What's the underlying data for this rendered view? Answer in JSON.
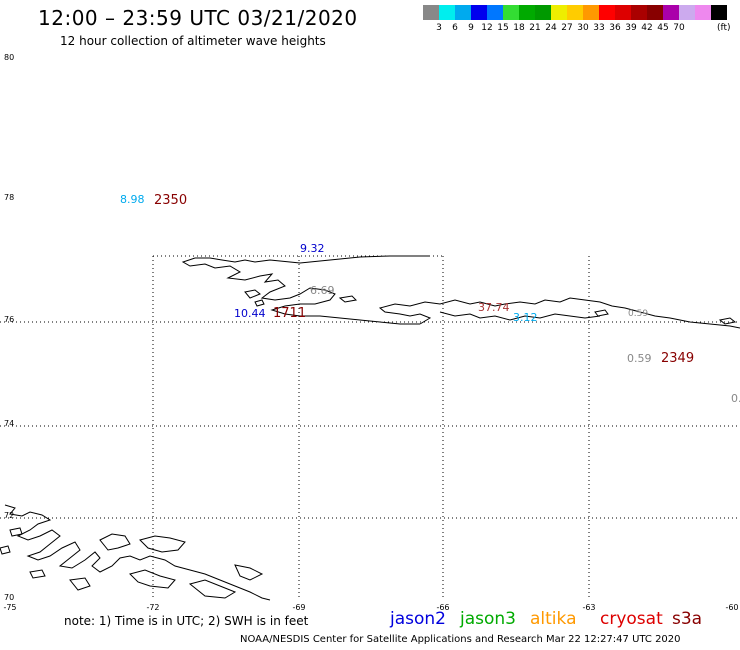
{
  "title": "12:00 – 23:59 UTC 03/21/2020",
  "subtitle": "12 hour collection of altimeter wave heights",
  "legend": {
    "colors": [
      "#888888",
      "#00eeee",
      "#00aaee",
      "#0000ee",
      "#0077ff",
      "#33dd33",
      "#00aa00",
      "#009900",
      "#eeee00",
      "#ffcc00",
      "#ff9900",
      "#ff0000",
      "#dd0000",
      "#aa0000",
      "#880000",
      "#aa00aa",
      "#ccaaee",
      "#ee88ee",
      "#000000"
    ],
    "labels": [
      "3",
      "6",
      "9",
      "12",
      "15",
      "18",
      "21",
      "24",
      "27",
      "30",
      "33",
      "36",
      "39",
      "42",
      "45",
      "70"
    ],
    "unit": "(ft)"
  },
  "map": {
    "lat_labels": [
      "80",
      "78",
      "76",
      "74",
      "72",
      "70"
    ],
    "lon_labels": [
      "-75",
      "-72",
      "-69",
      "-66",
      "-63",
      "-60"
    ]
  },
  "observations": [
    {
      "swh": "8.98",
      "color": "#00aaee"
    },
    {
      "swh": "2350",
      "color": "#880000"
    },
    {
      "swh": "9.32",
      "color": "#0000cc"
    },
    {
      "swh": "10.44",
      "color": "#0000cc"
    },
    {
      "swh": "1711",
      "color": "#880000"
    },
    {
      "swh": "0.59",
      "color": "#888888"
    },
    {
      "swh": "2349",
      "color": "#880000"
    },
    {
      "swh": "37.74",
      "color": "#aa3333"
    },
    {
      "swh": "3.12",
      "color": "#00aaee"
    },
    {
      "swh": "6.69",
      "color": "#888888"
    },
    {
      "swh": "0.",
      "color": "#888888"
    },
    {
      "swh": "0.59",
      "color": "#888888"
    }
  ],
  "note": "note:  1) Time is in UTC;  2) SWH is in feet",
  "satellites": [
    {
      "name": "jason2",
      "color": "#0000dd"
    },
    {
      "name": "jason3",
      "color": "#00aa00"
    },
    {
      "name": "altika",
      "color": "#ff9900"
    },
    {
      "name": "cryosat",
      "color": "#dd0000"
    },
    {
      "name": "s3a",
      "color": "#880000"
    }
  ],
  "credit": "NOAA/NESDIS Center for Satellite Applications and Research     Mar 22 12:27:47 UTC 2020"
}
